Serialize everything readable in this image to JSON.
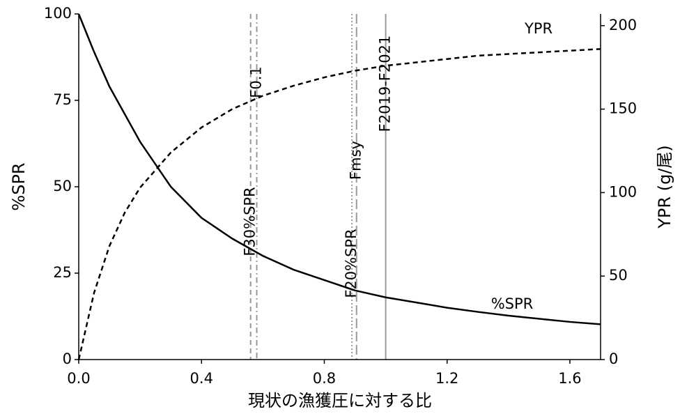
{
  "chart_data": {
    "type": "line",
    "x_label": "現状の漁獲圧に対する比",
    "y_label": "%SPR",
    "y2_label": "YPR (g/尾)",
    "x": [
      0,
      0.05,
      0.1,
      0.15,
      0.2,
      0.3,
      0.4,
      0.5,
      0.6,
      0.7,
      0.8,
      0.9,
      1.0,
      1.1,
      1.2,
      1.3,
      1.4,
      1.5,
      1.6,
      1.7
    ],
    "series": [
      {
        "name": "%SPR",
        "color": "#000000",
        "linestyle": "solid",
        "values": [
          100,
          89,
          79,
          71,
          63,
          50,
          41,
          35,
          30,
          26,
          23,
          20,
          18,
          16.5,
          15,
          13.8,
          12.7,
          11.8,
          10.9,
          10.2
        ]
      },
      {
        "name": "YPR",
        "color": "#000000",
        "linestyle": "dashed",
        "axis": "y2",
        "values": [
          0,
          40,
          68,
          88,
          103,
          124,
          139,
          150,
          158,
          164,
          169,
          173,
          176,
          178,
          180,
          182,
          183,
          184,
          185,
          186
        ]
      }
    ],
    "vlines": [
      {
        "label": "F30%SPR",
        "value": 0.56,
        "linestyle": "dashed",
        "color": "#999999"
      },
      {
        "label": "F0.1",
        "value": 0.58,
        "linestyle": "dashdot",
        "color": "#999999"
      },
      {
        "label": "F20%SPR",
        "value": 0.89,
        "linestyle": "dotted",
        "color": "#999999"
      },
      {
        "label": "Fmsy",
        "value": 0.905,
        "linestyle": "longdash",
        "color": "#999999"
      },
      {
        "label": "F2019-F2021",
        "value": 1.0,
        "linestyle": "solid",
        "color": "#999999"
      }
    ],
    "xlim": [
      0,
      1.7
    ],
    "xticks": [
      {
        "value": 0,
        "label": "0.0"
      },
      0.4,
      0.8,
      1.2,
      1.6
    ],
    "ylim": [
      0,
      100
    ],
    "yticks": [
      0,
      25,
      50,
      75,
      100
    ],
    "y2lim": [
      0,
      207
    ],
    "y2ticks": [
      0,
      50,
      100,
      150,
      200
    ]
  }
}
